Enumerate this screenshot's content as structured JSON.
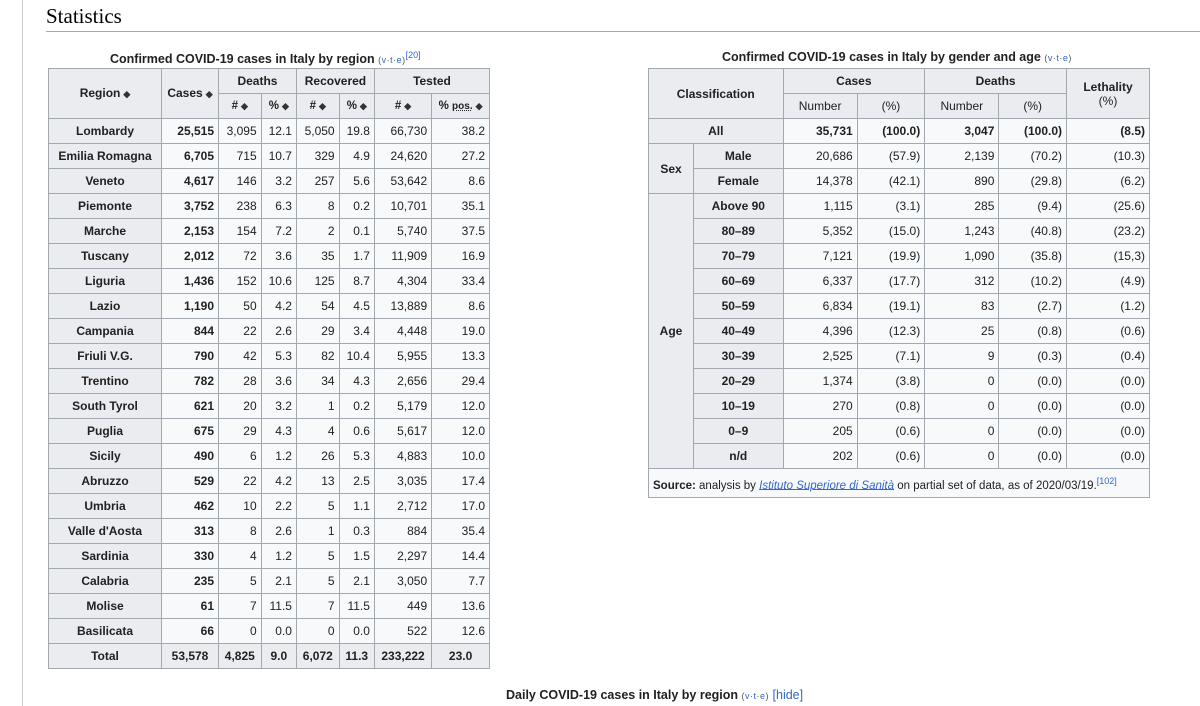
{
  "section_title": "Statistics",
  "vte": {
    "v": "v",
    "t": "t",
    "e": "e"
  },
  "region_table": {
    "caption": "Confirmed COVID-19 cases in Italy by region",
    "ref": "[20]",
    "headers": {
      "region": "Region",
      "cases": "Cases",
      "deaths": "Deaths",
      "recovered": "Recovered",
      "tested": "Tested",
      "num": "#",
      "pct": "%",
      "pct_pos_prefix": "%",
      "pct_pos": "pos."
    },
    "rows": [
      {
        "region": "Lombardy",
        "cases": "25,515",
        "d_n": "3,095",
        "d_p": "12.1",
        "r_n": "5,050",
        "r_p": "19.8",
        "t_n": "66,730",
        "t_p": "38.2"
      },
      {
        "region": "Emilia Romagna",
        "cases": "6,705",
        "d_n": "715",
        "d_p": "10.7",
        "r_n": "329",
        "r_p": "4.9",
        "t_n": "24,620",
        "t_p": "27.2"
      },
      {
        "region": "Veneto",
        "cases": "4,617",
        "d_n": "146",
        "d_p": "3.2",
        "r_n": "257",
        "r_p": "5.6",
        "t_n": "53,642",
        "t_p": "8.6"
      },
      {
        "region": "Piemonte",
        "cases": "3,752",
        "d_n": "238",
        "d_p": "6.3",
        "r_n": "8",
        "r_p": "0.2",
        "t_n": "10,701",
        "t_p": "35.1"
      },
      {
        "region": "Marche",
        "cases": "2,153",
        "d_n": "154",
        "d_p": "7.2",
        "r_n": "2",
        "r_p": "0.1",
        "t_n": "5,740",
        "t_p": "37.5"
      },
      {
        "region": "Tuscany",
        "cases": "2,012",
        "d_n": "72",
        "d_p": "3.6",
        "r_n": "35",
        "r_p": "1.7",
        "t_n": "11,909",
        "t_p": "16.9"
      },
      {
        "region": "Liguria",
        "cases": "1,436",
        "d_n": "152",
        "d_p": "10.6",
        "r_n": "125",
        "r_p": "8.7",
        "t_n": "4,304",
        "t_p": "33.4"
      },
      {
        "region": "Lazio",
        "cases": "1,190",
        "d_n": "50",
        "d_p": "4.2",
        "r_n": "54",
        "r_p": "4.5",
        "t_n": "13,889",
        "t_p": "8.6"
      },
      {
        "region": "Campania",
        "cases": "844",
        "d_n": "22",
        "d_p": "2.6",
        "r_n": "29",
        "r_p": "3.4",
        "t_n": "4,448",
        "t_p": "19.0"
      },
      {
        "region": "Friuli V.G.",
        "cases": "790",
        "d_n": "42",
        "d_p": "5.3",
        "r_n": "82",
        "r_p": "10.4",
        "t_n": "5,955",
        "t_p": "13.3"
      },
      {
        "region": "Trentino",
        "cases": "782",
        "d_n": "28",
        "d_p": "3.6",
        "r_n": "34",
        "r_p": "4.3",
        "t_n": "2,656",
        "t_p": "29.4"
      },
      {
        "region": "South Tyrol",
        "cases": "621",
        "d_n": "20",
        "d_p": "3.2",
        "r_n": "1",
        "r_p": "0.2",
        "t_n": "5,179",
        "t_p": "12.0"
      },
      {
        "region": "Puglia",
        "cases": "675",
        "d_n": "29",
        "d_p": "4.3",
        "r_n": "4",
        "r_p": "0.6",
        "t_n": "5,617",
        "t_p": "12.0"
      },
      {
        "region": "Sicily",
        "cases": "490",
        "d_n": "6",
        "d_p": "1.2",
        "r_n": "26",
        "r_p": "5.3",
        "t_n": "4,883",
        "t_p": "10.0"
      },
      {
        "region": "Abruzzo",
        "cases": "529",
        "d_n": "22",
        "d_p": "4.2",
        "r_n": "13",
        "r_p": "2.5",
        "t_n": "3,035",
        "t_p": "17.4"
      },
      {
        "region": "Umbria",
        "cases": "462",
        "d_n": "10",
        "d_p": "2.2",
        "r_n": "5",
        "r_p": "1.1",
        "t_n": "2,712",
        "t_p": "17.0"
      },
      {
        "region": "Valle d'Aosta",
        "cases": "313",
        "d_n": "8",
        "d_p": "2.6",
        "r_n": "1",
        "r_p": "0.3",
        "t_n": "884",
        "t_p": "35.4"
      },
      {
        "region": "Sardinia",
        "cases": "330",
        "d_n": "4",
        "d_p": "1.2",
        "r_n": "5",
        "r_p": "1.5",
        "t_n": "2,297",
        "t_p": "14.4"
      },
      {
        "region": "Calabria",
        "cases": "235",
        "d_n": "5",
        "d_p": "2.1",
        "r_n": "5",
        "r_p": "2.1",
        "t_n": "3,050",
        "t_p": "7.7"
      },
      {
        "region": "Molise",
        "cases": "61",
        "d_n": "7",
        "d_p": "11.5",
        "r_n": "7",
        "r_p": "11.5",
        "t_n": "449",
        "t_p": "13.6"
      },
      {
        "region": "Basilicata",
        "cases": "66",
        "d_n": "0",
        "d_p": "0.0",
        "r_n": "0",
        "r_p": "0.0",
        "t_n": "522",
        "t_p": "12.6"
      }
    ],
    "total": {
      "region": "Total",
      "cases": "53,578",
      "d_n": "4,825",
      "d_p": "9.0",
      "r_n": "6,072",
      "r_p": "11.3",
      "t_n": "233,222",
      "t_p": "23.0"
    }
  },
  "age_table": {
    "caption": "Confirmed COVID-19 cases in Italy by gender and age",
    "headers": {
      "classification": "Classification",
      "cases": "Cases",
      "deaths": "Deaths",
      "lethality": "Lethality",
      "lethality_unit": "(%)",
      "number": "Number",
      "pct": "(%)"
    },
    "all": {
      "label": "All",
      "c_n": "35,731",
      "c_p": "(100.0)",
      "d_n": "3,047",
      "d_p": "(100.0)",
      "leth": "(8.5)"
    },
    "sex_label": "Sex",
    "sex_rows": [
      {
        "label": "Male",
        "c_n": "20,686",
        "c_p": "(57.9)",
        "d_n": "2,139",
        "d_p": "(70.2)",
        "leth": "(10.3)"
      },
      {
        "label": "Female",
        "c_n": "14,378",
        "c_p": "(42.1)",
        "d_n": "890",
        "d_p": "(29.8)",
        "leth": "(6.2)"
      }
    ],
    "age_label": "Age",
    "age_rows": [
      {
        "label": "Above 90",
        "c_n": "1,115",
        "c_p": "(3.1)",
        "d_n": "285",
        "d_p": "(9.4)",
        "leth": "(25.6)"
      },
      {
        "label": "80–89",
        "c_n": "5,352",
        "c_p": "(15.0)",
        "d_n": "1,243",
        "d_p": "(40.8)",
        "leth": "(23.2)"
      },
      {
        "label": "70–79",
        "c_n": "7,121",
        "c_p": "(19.9)",
        "d_n": "1,090",
        "d_p": "(35.8)",
        "leth": "(15,3)"
      },
      {
        "label": "60–69",
        "c_n": "6,337",
        "c_p": "(17.7)",
        "d_n": "312",
        "d_p": "(10.2)",
        "leth": "(4.9)"
      },
      {
        "label": "50–59",
        "c_n": "6,834",
        "c_p": "(19.1)",
        "d_n": "83",
        "d_p": "(2.7)",
        "leth": "(1.2)"
      },
      {
        "label": "40–49",
        "c_n": "4,396",
        "c_p": "(12.3)",
        "d_n": "25",
        "d_p": "(0.8)",
        "leth": "(0.6)"
      },
      {
        "label": "30–39",
        "c_n": "2,525",
        "c_p": "(7.1)",
        "d_n": "9",
        "d_p": "(0.3)",
        "leth": "(0.4)"
      },
      {
        "label": "20–29",
        "c_n": "1,374",
        "c_p": "(3.8)",
        "d_n": "0",
        "d_p": "(0.0)",
        "leth": "(0.0)"
      },
      {
        "label": "10–19",
        "c_n": "270",
        "c_p": "(0.8)",
        "d_n": "0",
        "d_p": "(0.0)",
        "leth": "(0.0)"
      },
      {
        "label": "0–9",
        "c_n": "205",
        "c_p": "(0.6)",
        "d_n": "0",
        "d_p": "(0.0)",
        "leth": "(0.0)"
      },
      {
        "label": "n/d",
        "c_n": "202",
        "c_p": "(0.6)",
        "d_n": "0",
        "d_p": "(0.0)",
        "leth": "(0.0)"
      }
    ],
    "source": {
      "label": "Source:",
      "text1": "analysis by",
      "link": "Istituto Superiore di Sanità",
      "text2": "on partial set of data, as of 2020/03/19.",
      "ref": "[102]"
    }
  },
  "daily_caption": {
    "text": "Daily COVID-19 cases in Italy by region",
    "hide": "[hide]"
  }
}
